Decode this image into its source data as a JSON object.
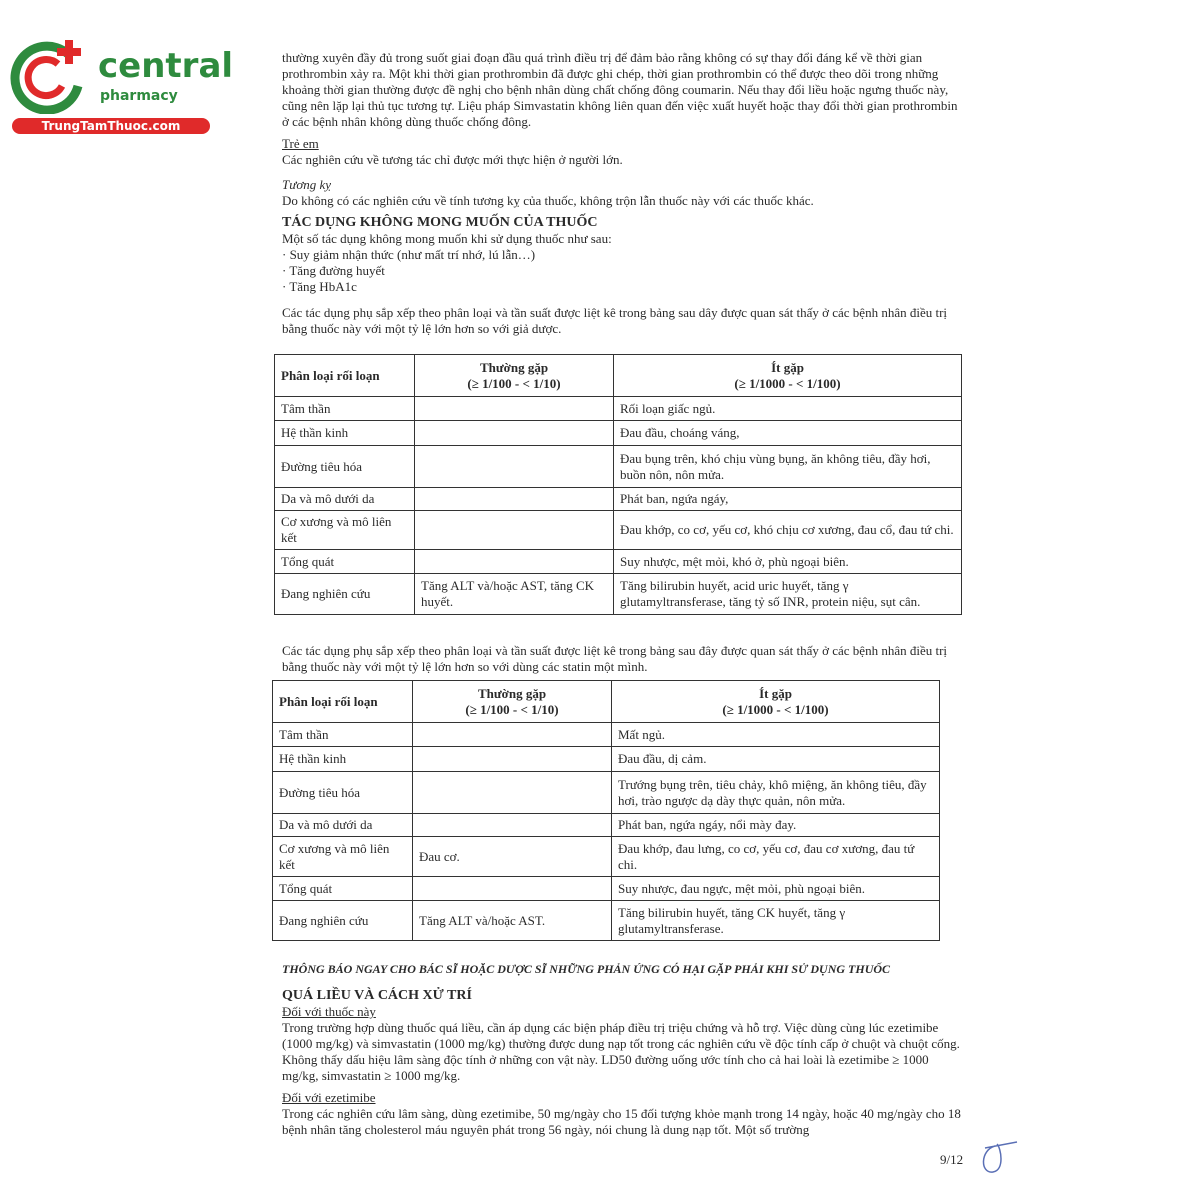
{
  "logo": {
    "brand": "central",
    "sub": "pharmacy",
    "site": "TrungTamThuoc.com",
    "colors": {
      "green": "#2e8b3e",
      "red": "#e02a2a"
    }
  },
  "intro_paragraph": "thường xuyên đầy đủ trong suốt giai đoạn đầu quá trình điều trị để đảm bảo rằng không có sự thay đổi đáng kể về thời gian prothrombin xảy ra. Một khi thời gian prothrombin đã được ghi chép, thời gian prothrombin có thể được theo dõi trong những khoảng thời gian thường được đề nghị cho bệnh nhân dùng chất chống đông coumarin. Nếu thay đổi liều hoặc ngưng thuốc này, cũng nên lặp lại thủ tục tương tự. Liệu pháp Simvastatin không liên quan đến việc xuất huyết hoặc thay đổi thời gian prothrombin ở các bệnh nhân không dùng thuốc chống đông.",
  "children": {
    "heading": "Trẻ em",
    "text": "Các nghiên cứu về tương tác chỉ được mới thực hiện ở người lớn."
  },
  "compat": {
    "heading": "Tương kỵ",
    "text": "Do không có các nghiên cứu về tính tương kỵ của thuốc, không trộn lẫn thuốc này với các thuốc khác."
  },
  "adverse": {
    "heading": "TÁC DỤNG KHÔNG MONG MUỐN CỦA THUỐC",
    "intro": "Một số tác dụng không mong muốn khi sử dụng thuốc như sau:",
    "bullets": [
      "· Suy giảm nhận thức (như mất trí nhớ, lú lẫn…)",
      "· Tăng đường huyết",
      "· Tăng HbA1c"
    ],
    "table1_intro": "Các tác dụng phụ sắp xếp theo phân loại và tần suất được liệt kê trong bảng sau dây được quan sát thấy ở các bệnh nhân điều trị bằng thuốc này với một tỷ lệ lớn hơn so với giả dược.",
    "table2_intro": "Các tác dụng phụ sắp xếp theo phân loại và tần suất được liệt kê trong bảng sau đây được quan sát thấy ở các bệnh nhân điều trị bằng thuốc này với một tỷ lệ lớn hơn so với dùng các statin một mình.",
    "headers": {
      "c1": "Phân loại rối loạn",
      "c2a": "Thường gặp",
      "c2b": "(≥ 1/100 - < 1/10)",
      "c3a": "Ít gặp",
      "c3b": "(≥ 1/1000 - < 1/100)"
    },
    "table1": [
      [
        "Tâm thần",
        "",
        "Rối loạn giấc ngủ."
      ],
      [
        "Hệ thần kinh",
        "",
        "Đau đầu, choáng váng,"
      ],
      [
        "Đường tiêu hóa",
        "",
        "Đau bụng trên, khó chịu vùng bụng, ăn không tiêu, đầy hơi, buồn nôn, nôn mửa."
      ],
      [
        "Da và mô dưới da",
        "",
        "Phát ban, ngứa ngáy,"
      ],
      [
        "Cơ xương và mô liên kết",
        "",
        "Đau khớp, co cơ, yếu cơ, khó chịu cơ xương, đau cổ, đau tứ chi."
      ],
      [
        "Tổng quát",
        "",
        "Suy nhược, mệt mỏi, khó ở, phù ngoại biên."
      ],
      [
        "Đang nghiên cứu",
        "Tăng ALT và/hoặc AST, tăng CK huyết.",
        "Tăng bilirubin huyết, acid uric huyết, tăng γ glutamyltransferase, tăng tỷ số INR, protein niệu, sụt cân."
      ]
    ],
    "table2": [
      [
        "Tâm thần",
        "",
        "Mất ngủ."
      ],
      [
        "Hệ thần kinh",
        "",
        "Đau đầu, dị cảm."
      ],
      [
        "Đường tiêu hóa",
        "",
        "Trướng bụng trên, tiêu chảy, khô miệng, ăn không tiêu, đầy hơi, trào ngược dạ dày thực quản, nôn mửa."
      ],
      [
        "Da và mô dưới da",
        "",
        "Phát ban, ngứa ngáy, nổi mày đay."
      ],
      [
        "Cơ xương và mô liên kết",
        "Đau cơ.",
        "Đau khớp, đau lưng, co cơ, yếu cơ, đau cơ xương, đau tứ chi."
      ],
      [
        "Tổng quát",
        "",
        "Suy nhược, đau ngực, mệt mỏi, phù ngoại biên."
      ],
      [
        "Đang nghiên cứu",
        "Tăng ALT và/hoặc AST.",
        "Tăng bilirubin huyết, tăng CK huyết, tăng γ glutamyltransferase."
      ]
    ],
    "notice": "THÔNG BÁO NGAY CHO BÁC SĨ HOẶC DƯỢC SĨ NHỮNG PHẢN ỨNG CÓ HẠI GẶP PHẢI KHI SỬ DỤNG THUỐC"
  },
  "overdose": {
    "heading": "QUÁ LIỀU VÀ CÁCH XỬ TRÍ",
    "sub1": "Đối với thuốc này",
    "text1": "Trong trường hợp dùng thuốc quá liều, cần áp dụng các biện pháp điều trị triệu chứng và hỗ trợ. Việc dùng cùng lúc ezetimibe (1000 mg/kg) và simvastatin (1000 mg/kg) thường được dung nạp tốt trong các nghiên cứu về độc tính cấp ở chuột và chuột cống. Không thấy dấu hiệu lâm sàng độc tính ở những con vật này. LD50 đường uống ước tính cho cả hai loài là ezetimibe ≥ 1000 mg/kg, simvastatin ≥ 1000 mg/kg.",
    "sub2": "Đối với ezetimibe",
    "text2": "Trong các nghiên cứu lâm sàng, dùng ezetimibe, 50 mg/ngày cho 15 đối tượng khỏe mạnh trong 14 ngày, hoặc 40 mg/ngày cho 18 bệnh nhân tăng cholesterol máu nguyên phát trong 56 ngày, nói chung là dung nạp tốt. Một số trường"
  },
  "page_number": "9/12"
}
